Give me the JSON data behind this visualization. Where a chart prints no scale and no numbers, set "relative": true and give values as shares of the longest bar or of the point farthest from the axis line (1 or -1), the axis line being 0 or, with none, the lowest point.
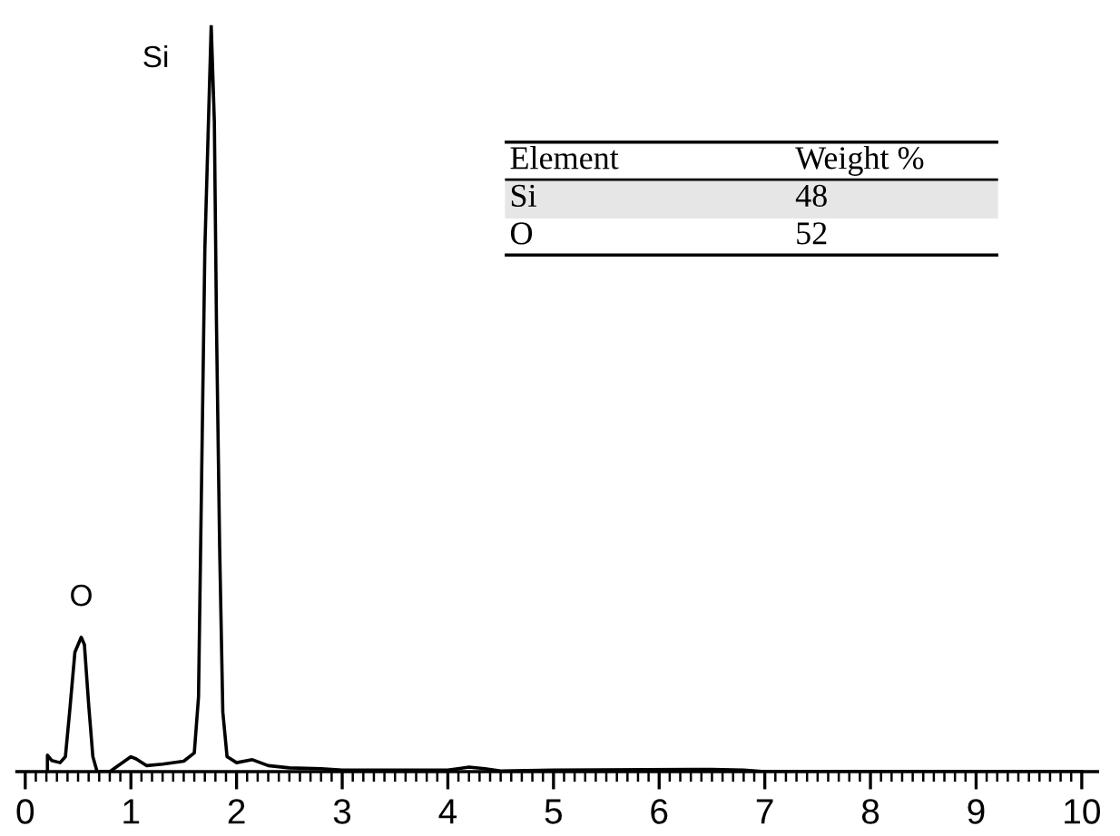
{
  "chart_data": {
    "type": "line",
    "relative": true,
    "color": "#000000",
    "line_style": "solid",
    "marker": "none",
    "grid": false,
    "legend": false,
    "tick_labels": "x",
    "x": [
      0.21,
      0.21,
      0.25,
      0.33,
      0.38,
      0.42,
      0.47,
      0.53,
      0.56,
      0.6,
      0.64,
      0.68,
      0.8,
      0.9,
      1.0,
      1.05,
      1.15,
      1.3,
      1.5,
      1.6,
      1.64,
      1.67,
      1.7,
      1.73,
      1.76,
      1.79,
      1.81,
      1.84,
      1.87,
      1.91,
      2.0,
      2.15,
      2.3,
      2.5,
      2.8,
      3.0,
      4.0,
      4.2,
      4.35,
      4.5,
      5.0,
      6.5,
      6.8,
      7.0,
      10.0
    ],
    "values": [
      0,
      0.022,
      0.015,
      0.012,
      0.02,
      0.08,
      0.16,
      0.18,
      0.17,
      0.09,
      0.02,
      0,
      0,
      0.01,
      0.02,
      0.017,
      0.008,
      0.01,
      0.014,
      0.025,
      0.1,
      0.4,
      0.7,
      0.85,
      1.0,
      0.87,
      0.6,
      0.3,
      0.08,
      0.02,
      0.012,
      0.016,
      0.008,
      0.005,
      0.004,
      0.002,
      0.002,
      0.006,
      0.004,
      0.001,
      0.002,
      0.003,
      0.002,
      0,
      0
    ],
    "xlim": [
      -0.08,
      10.15
    ],
    "xticks": [
      0,
      {
        "value": 0.1,
        "label": null
      },
      {
        "value": 0.2,
        "label": null
      },
      {
        "value": 0.3,
        "label": null
      },
      {
        "value": 0.4,
        "label": null
      },
      {
        "value": 0.5,
        "label": null
      },
      {
        "value": 0.6,
        "label": null
      },
      {
        "value": 0.7,
        "label": null
      },
      {
        "value": 0.8,
        "label": null
      },
      {
        "value": 0.9,
        "label": null
      },
      1,
      {
        "value": 1.1,
        "label": null
      },
      {
        "value": 1.2,
        "label": null
      },
      {
        "value": 1.3,
        "label": null
      },
      {
        "value": 1.4,
        "label": null
      },
      {
        "value": 1.5,
        "label": null
      },
      {
        "value": 1.6,
        "label": null
      },
      {
        "value": 1.7,
        "label": null
      },
      {
        "value": 1.8,
        "label": null
      },
      {
        "value": 1.9,
        "label": null
      },
      2,
      {
        "value": 2.1,
        "label": null
      },
      {
        "value": 2.2,
        "label": null
      },
      {
        "value": 2.3,
        "label": null
      },
      {
        "value": 2.4,
        "label": null
      },
      {
        "value": 2.5,
        "label": null
      },
      {
        "value": 2.6,
        "label": null
      },
      {
        "value": 2.7,
        "label": null
      },
      {
        "value": 2.8,
        "label": null
      },
      {
        "value": 2.9,
        "label": null
      },
      3,
      {
        "value": 3.1,
        "label": null
      },
      {
        "value": 3.2,
        "label": null
      },
      {
        "value": 3.3,
        "label": null
      },
      {
        "value": 3.4,
        "label": null
      },
      {
        "value": 3.5,
        "label": null
      },
      {
        "value": 3.6,
        "label": null
      },
      {
        "value": 3.7,
        "label": null
      },
      {
        "value": 3.8,
        "label": null
      },
      {
        "value": 3.9,
        "label": null
      },
      4,
      {
        "value": 4.1,
        "label": null
      },
      {
        "value": 4.2,
        "label": null
      },
      {
        "value": 4.3,
        "label": null
      },
      {
        "value": 4.4,
        "label": null
      },
      {
        "value": 4.5,
        "label": null
      },
      {
        "value": 4.6,
        "label": null
      },
      {
        "value": 4.7,
        "label": null
      },
      {
        "value": 4.8,
        "label": null
      },
      {
        "value": 4.9,
        "label": null
      },
      5,
      {
        "value": 5.1,
        "label": null
      },
      {
        "value": 5.2,
        "label": null
      },
      {
        "value": 5.3,
        "label": null
      },
      {
        "value": 5.4,
        "label": null
      },
      {
        "value": 5.5,
        "label": null
      },
      {
        "value": 5.6,
        "label": null
      },
      {
        "value": 5.7,
        "label": null
      },
      {
        "value": 5.8,
        "label": null
      },
      {
        "value": 5.9,
        "label": null
      },
      6,
      {
        "value": 6.1,
        "label": null
      },
      {
        "value": 6.2,
        "label": null
      },
      {
        "value": 6.3,
        "label": null
      },
      {
        "value": 6.4,
        "label": null
      },
      {
        "value": 6.5,
        "label": null
      },
      {
        "value": 6.6,
        "label": null
      },
      {
        "value": 6.7,
        "label": null
      },
      {
        "value": 6.8,
        "label": null
      },
      {
        "value": 6.9,
        "label": null
      },
      7,
      {
        "value": 7.1,
        "label": null
      },
      {
        "value": 7.2,
        "label": null
      },
      {
        "value": 7.3,
        "label": null
      },
      {
        "value": 7.4,
        "label": null
      },
      {
        "value": 7.5,
        "label": null
      },
      {
        "value": 7.6,
        "label": null
      },
      {
        "value": 7.7,
        "label": null
      },
      {
        "value": 7.8,
        "label": null
      },
      {
        "value": 7.9,
        "label": null
      },
      8,
      {
        "value": 8.1,
        "label": null
      },
      {
        "value": 8.2,
        "label": null
      },
      {
        "value": 8.3,
        "label": null
      },
      {
        "value": 8.4,
        "label": null
      },
      {
        "value": 8.5,
        "label": null
      },
      {
        "value": 8.6,
        "label": null
      },
      {
        "value": 8.7,
        "label": null
      },
      {
        "value": 8.8,
        "label": null
      },
      {
        "value": 8.9,
        "label": null
      },
      9,
      {
        "value": 9.1,
        "label": null
      },
      {
        "value": 9.2,
        "label": null
      },
      {
        "value": 9.3,
        "label": null
      },
      {
        "value": 9.4,
        "label": null
      },
      {
        "value": 9.5,
        "label": null
      },
      {
        "value": 9.6,
        "label": null
      },
      {
        "value": 9.7,
        "label": null
      },
      {
        "value": 9.8,
        "label": null
      },
      {
        "value": 9.9,
        "label": null
      },
      10
    ],
    "annotations": [
      {
        "text": "Si",
        "x": 1.76,
        "y": 1.0
      },
      {
        "text": "O",
        "x": 0.53,
        "y": 0.18
      },
      "Element",
      "Weight %",
      "Si",
      "48",
      "O",
      "52"
    ]
  }
}
